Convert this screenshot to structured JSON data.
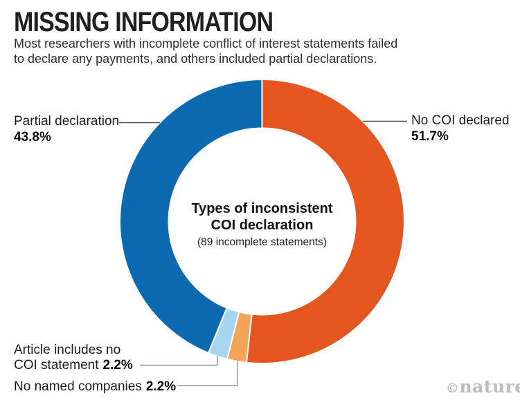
{
  "header": {
    "title": "MISSING INFORMATION",
    "subtitle_line1": "Most researchers with incomplete conflict of interest statements failed",
    "subtitle_line2": "to declare any payments, and others included partial declarations."
  },
  "chart_data": {
    "type": "pie",
    "variant": "donut",
    "title": "Types of inconsistent COI declaration",
    "center_note": "(89 incomplete statements)",
    "unit": "%",
    "direction": "clockwise",
    "start_angle_deg": 0,
    "segments": [
      {
        "id": "no-coi-declared",
        "label": "No COI declared",
        "value": 51.7,
        "color": "#e4561f"
      },
      {
        "id": "no-named-companies",
        "label": "No named companies",
        "value": 2.2,
        "color": "#f4a459"
      },
      {
        "id": "article-no-coi-statement",
        "label": "Article includes no COI statement",
        "value": 2.2,
        "color": "#a5d5ef"
      },
      {
        "id": "partial-declaration",
        "label": "Partial declaration",
        "value": 43.8,
        "color": "#0d6ab1"
      }
    ]
  },
  "center": {
    "line1": "Types of inconsistent",
    "line2": "COI declaration",
    "note": "(89 incomplete statements)"
  },
  "callouts": {
    "partial": {
      "label": "Partial declaration",
      "pct": "43.8%"
    },
    "no_coi": {
      "label": "No COI declared",
      "pct": "51.7%"
    },
    "article": {
      "label": "Article includes no COI statement",
      "pct": "2.2%"
    },
    "no_named": {
      "label": "No named companies",
      "pct": "2.2%"
    }
  },
  "watermark": {
    "symbol": "©",
    "name": "nature"
  }
}
